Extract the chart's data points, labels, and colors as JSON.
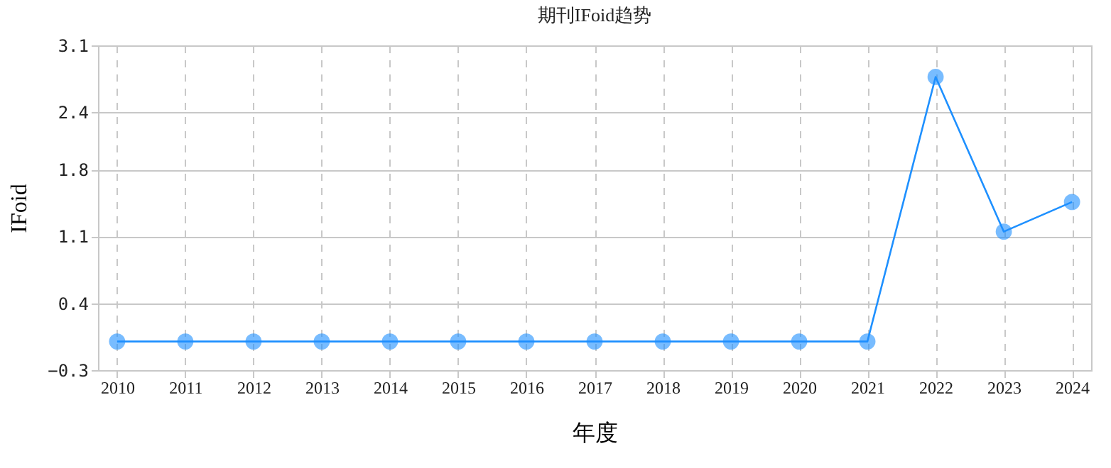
{
  "chart_data": {
    "type": "line",
    "title": "期刊IFoid趋势",
    "xlabel": "年度",
    "ylabel": "IFoid",
    "categories": [
      "2010",
      "2011",
      "2012",
      "2013",
      "2014",
      "2015",
      "2016",
      "2017",
      "2018",
      "2019",
      "2020",
      "2021",
      "2022",
      "2023",
      "2024"
    ],
    "series": [
      {
        "color": "#1e90ff",
        "values": [
          0,
          0,
          0,
          0,
          0,
          0,
          0,
          0,
          0,
          0,
          0,
          0,
          2.77,
          1.15,
          1.46
        ]
      }
    ],
    "ylim": [
      -0.3,
      3.1
    ],
    "yticks": [
      -0.3,
      0.4,
      1.1,
      1.8,
      2.4,
      3.1
    ],
    "grid": true,
    "marker": "circle",
    "line_style": "solid"
  }
}
